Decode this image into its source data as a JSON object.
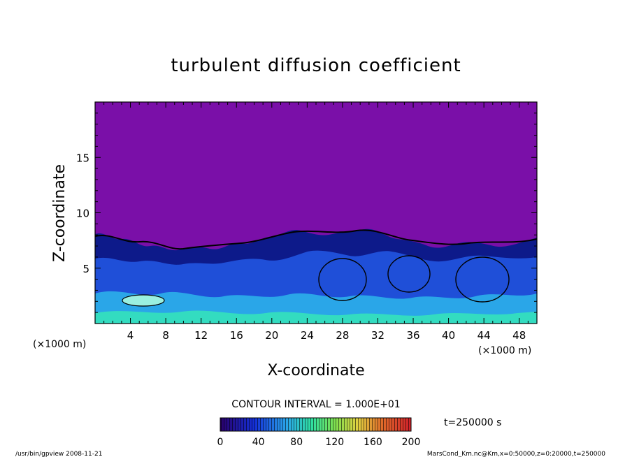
{
  "chart_data": {
    "type": "heatmap",
    "title": "turbulent diffusion coefficient",
    "xlabel": "X-coordinate",
    "ylabel": "Z-coordinate",
    "x_unit_left": "(×1000 m)",
    "x_unit_right": "(×1000 m)",
    "xlim": [
      0,
      50
    ],
    "ylim": [
      0,
      20
    ],
    "x_ticks": [
      4,
      8,
      12,
      16,
      20,
      24,
      28,
      32,
      36,
      40,
      44,
      48
    ],
    "y_ticks": [
      5,
      10,
      15
    ],
    "contour_interval": "CONTOUR INTERVAL = 1.000E+01",
    "colorbar": {
      "min": 0,
      "max": 200,
      "ticks": [
        0,
        40,
        80,
        120,
        160,
        200
      ]
    },
    "time_label": "t=250000 s",
    "background_color": "#7a0fa8"
  },
  "footer": {
    "left": "/usr/bin/gpview   2008-11-21",
    "right": "MarsCond_Km.nc@Km,x=0:50000,z=0:20000,t=250000"
  }
}
